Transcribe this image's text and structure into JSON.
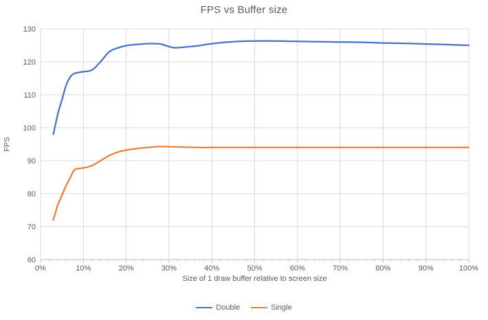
{
  "title": "FPS vs Buffer size",
  "chart_data": {
    "type": "line",
    "title": "FPS vs Buffer size",
    "xlabel": "Size of 1 draw buffer relative to screen size",
    "ylabel": "FPS",
    "xlim": [
      0,
      100
    ],
    "ylim": [
      60,
      130
    ],
    "y_ticks": [
      60,
      70,
      80,
      90,
      100,
      110,
      120,
      130
    ],
    "x_ticks": [
      0,
      10,
      20,
      30,
      40,
      50,
      60,
      70,
      80,
      90,
      100
    ],
    "x_tick_labels": [
      "0%",
      "10%",
      "20%",
      "30%",
      "40%",
      "50%",
      "60%",
      "70%",
      "80%",
      "90%",
      "100%"
    ],
    "x_minor_tick_step": 2,
    "grid": true,
    "smooth": true,
    "legend_position": "bottom",
    "x": [
      3,
      4,
      5,
      6,
      7,
      8,
      10,
      12,
      14,
      16,
      18,
      20,
      22,
      25,
      28,
      31,
      34,
      37,
      40,
      45,
      50,
      55,
      60,
      65,
      70,
      75,
      80,
      85,
      90,
      95,
      100
    ],
    "series": [
      {
        "name": "Double",
        "color": "#4472C4",
        "values": [
          98,
          104,
          108.5,
          113,
          115.5,
          116.5,
          117,
          117.5,
          120,
          123,
          124.2,
          124.9,
          125.2,
          125.5,
          125.4,
          124.3,
          124.5,
          124.9,
          125.5,
          126.1,
          126.3,
          126.3,
          126.2,
          126.1,
          126,
          125.9,
          125.7,
          125.6,
          125.4,
          125.2,
          125
        ]
      },
      {
        "name": "Single",
        "color": "#ED7D31",
        "values": [
          72,
          76.5,
          79.5,
          82.5,
          85,
          87.3,
          87.8,
          88.5,
          90,
          91.5,
          92.6,
          93.2,
          93.6,
          94,
          94.3,
          94.2,
          94.1,
          94,
          94,
          94,
          94,
          94,
          94,
          94,
          94,
          94,
          94,
          94,
          94,
          94,
          94
        ]
      }
    ],
    "colors": {
      "grid": "#D9D9D9",
      "axis": "#BFBFBF",
      "tick": "#BFBFBF",
      "text": "#595959",
      "background": "#FFFFFF"
    }
  }
}
